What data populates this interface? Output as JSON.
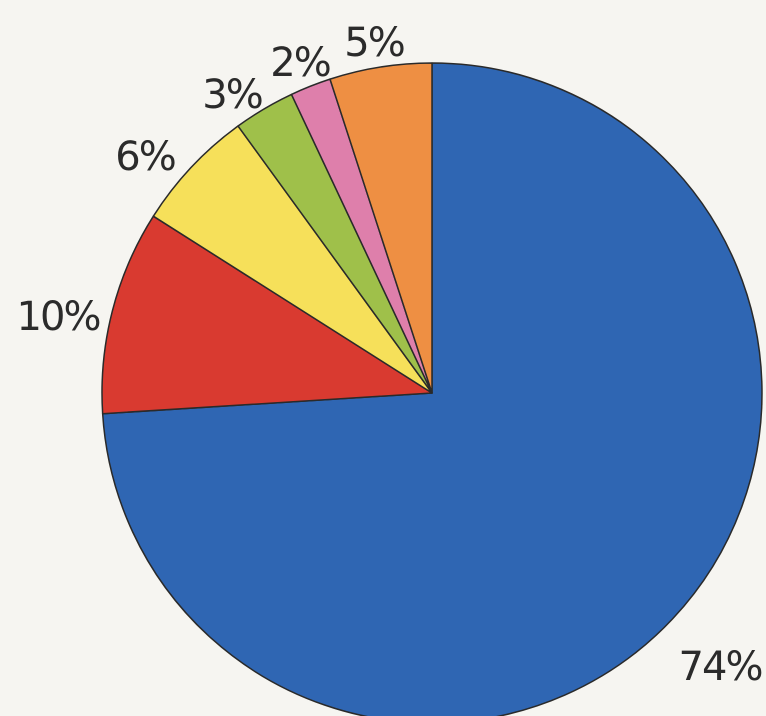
{
  "chart_data": {
    "type": "pie",
    "title": "",
    "start_angle_deg": 90,
    "direction": "clockwise",
    "slices": [
      {
        "label": "74%",
        "value": 74,
        "color": "#2f66b3"
      },
      {
        "label": "10%",
        "value": 10,
        "color": "#d93a30"
      },
      {
        "label": "6%",
        "value": 6,
        "color": "#f6e05a"
      },
      {
        "label": "3%",
        "value": 3,
        "color": "#9fc04a"
      },
      {
        "label": "2%",
        "value": 2,
        "color": "#de7fab"
      },
      {
        "label": "5%",
        "value": 5,
        "color": "#ee8f43"
      }
    ]
  }
}
